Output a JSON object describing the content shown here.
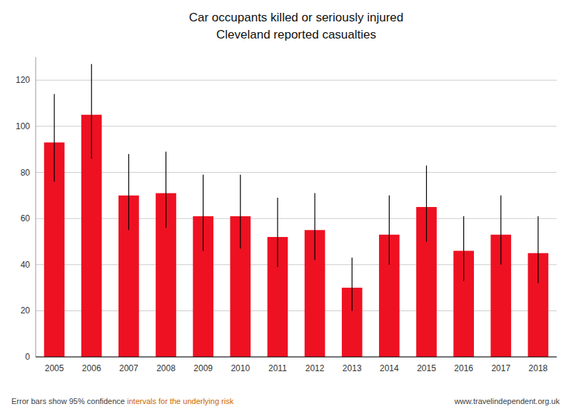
{
  "chart_data": {
    "type": "bar",
    "title": "Car occupants killed or seriously injured",
    "subtitle": "Cleveland reported casualties",
    "categories": [
      "2005",
      "2006",
      "2007",
      "2008",
      "2009",
      "2010",
      "2011",
      "2012",
      "2013",
      "2014",
      "2015",
      "2016",
      "2017",
      "2018"
    ],
    "values": [
      93,
      105,
      70,
      71,
      61,
      61,
      52,
      55,
      30,
      53,
      65,
      46,
      53,
      45
    ],
    "err_low": [
      17,
      19,
      15,
      15,
      15,
      14,
      13,
      13,
      10,
      13,
      15,
      13,
      13,
      13
    ],
    "err_high": [
      21,
      22,
      18,
      18,
      18,
      18,
      17,
      16,
      13,
      17,
      18,
      15,
      17,
      16
    ],
    "color": "#ee1122",
    "ylim": [
      0,
      130
    ],
    "yticks": [
      0,
      20,
      40,
      60,
      80,
      100,
      120
    ],
    "grid": true,
    "annotations": [
      "Error bars show 95% confidence ",
      "intervals for the underlying risk",
      "www.travelindependent.org.uk"
    ]
  }
}
